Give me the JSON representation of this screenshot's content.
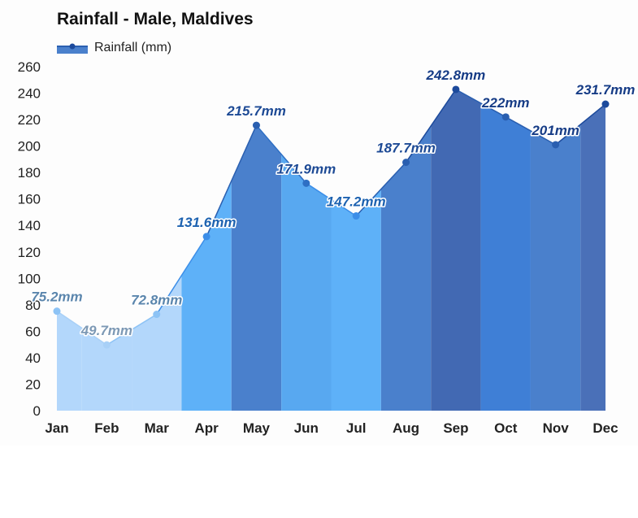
{
  "chart_data": {
    "type": "area",
    "title": "Rainfall - Male, Maldives",
    "categories": [
      "Jan",
      "Feb",
      "Mar",
      "Apr",
      "May",
      "Jun",
      "Jul",
      "Aug",
      "Sep",
      "Oct",
      "Nov",
      "Dec"
    ],
    "series": [
      {
        "name": "Rainfall (mm)",
        "values": [
          75.2,
          49.7,
          72.8,
          131.6,
          215.7,
          171.9,
          147.2,
          187.7,
          242.8,
          222,
          201,
          231.7
        ],
        "data_labels": [
          "75.2mm",
          "49.7mm",
          "72.8mm",
          "131.6mm",
          "215.7mm",
          "171.9mm",
          "147.2mm",
          "187.7mm",
          "242.8mm",
          "222mm",
          "201mm",
          "231.7mm"
        ]
      }
    ],
    "ylim": [
      0,
      260
    ],
    "yticks": [
      "0",
      "20",
      "40",
      "60",
      "80",
      "100",
      "120",
      "140",
      "160",
      "180",
      "200",
      "220",
      "240",
      "260"
    ],
    "grid": false,
    "legend": "top-left",
    "colors": {
      "fill": [
        "#b3d7fb",
        "#b3d7fb",
        "#b3d7fb",
        "#5eb1f8",
        "#4a80cc",
        "#58a8f0",
        "#5eb1f8",
        "#4a80cc",
        "#4269b3",
        "#3f7fd6",
        "#4a80cc",
        "#4a70b8"
      ],
      "line": [
        "#8dc3f5",
        "#a8d0f7",
        "#8dc3f5",
        "#3c8ee8",
        "#2a5fb0",
        "#2e6fc4",
        "#3c8ee8",
        "#2a5fb0",
        "#1c4a9c",
        "#2a5fb0",
        "#2a5fb0",
        "#1c4a9c"
      ],
      "label": [
        "#5b86ad",
        "#7d99b5",
        "#5b86ad",
        "#1d62b0",
        "#1d4a95",
        "#1d4a95",
        "#1d62b0",
        "#1d4a95",
        "#163c86",
        "#163c86",
        "#163c86",
        "#163c86"
      ],
      "legend": "#2a5fb0"
    }
  }
}
